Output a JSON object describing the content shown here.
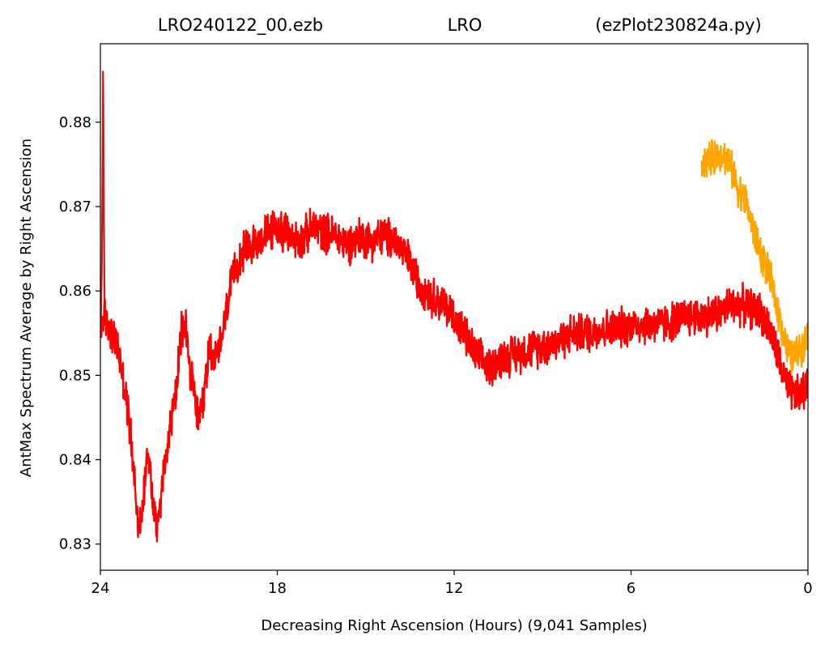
{
  "chart_data": {
    "type": "line",
    "title_parts": [
      "LRO240122_00.ezb",
      "LRO",
      "(ezPlot230824a.py)"
    ],
    "xlabel": "Decreasing Right Ascension (Hours) (9,041 Samples)",
    "ylabel": "AntMax Spectrum Average by Right Ascension",
    "xlim": [
      24,
      0
    ],
    "ylim": [
      0.8269,
      0.8893
    ],
    "x_ticks": [
      24,
      18,
      12,
      6,
      0
    ],
    "x_tick_labels": [
      "24",
      "18",
      "12",
      "6",
      "0"
    ],
    "y_ticks": [
      0.83,
      0.84,
      0.85,
      0.86,
      0.87,
      0.88
    ],
    "y_tick_labels": [
      "0.83",
      "0.84",
      "0.85",
      "0.86",
      "0.87",
      "0.88"
    ],
    "grid": false,
    "series": [
      {
        "color": "#ff0000",
        "noise": 0.0028,
        "points": [
          [
            24.0,
            0.8555
          ],
          [
            23.85,
            0.857
          ],
          [
            23.6,
            0.855
          ],
          [
            23.4,
            0.853
          ],
          [
            23.2,
            0.849
          ],
          [
            23.0,
            0.844
          ],
          [
            22.85,
            0.838
          ],
          [
            22.7,
            0.832
          ],
          [
            22.6,
            0.833
          ],
          [
            22.5,
            0.8375
          ],
          [
            22.4,
            0.842
          ],
          [
            22.25,
            0.836
          ],
          [
            22.1,
            0.832
          ],
          [
            21.95,
            0.8355
          ],
          [
            21.8,
            0.84
          ],
          [
            21.6,
            0.8445
          ],
          [
            21.4,
            0.849
          ],
          [
            21.25,
            0.855
          ],
          [
            21.1,
            0.856
          ],
          [
            20.95,
            0.85
          ],
          [
            20.8,
            0.8475
          ],
          [
            20.65,
            0.844
          ],
          [
            20.5,
            0.847
          ],
          [
            20.3,
            0.8535
          ],
          [
            20.1,
            0.852
          ],
          [
            19.9,
            0.854
          ],
          [
            19.6,
            0.86
          ],
          [
            19.3,
            0.864
          ],
          [
            19.0,
            0.865
          ],
          [
            18.6,
            0.866
          ],
          [
            18.3,
            0.867
          ],
          [
            18.0,
            0.8675
          ],
          [
            17.6,
            0.8665
          ],
          [
            17.2,
            0.866
          ],
          [
            16.8,
            0.8675
          ],
          [
            16.4,
            0.867
          ],
          [
            16.0,
            0.8665
          ],
          [
            15.6,
            0.8655
          ],
          [
            15.2,
            0.8665
          ],
          [
            14.8,
            0.866
          ],
          [
            14.4,
            0.8665
          ],
          [
            14.0,
            0.866
          ],
          [
            13.6,
            0.864
          ],
          [
            13.2,
            0.861
          ],
          [
            12.8,
            0.8595
          ],
          [
            12.4,
            0.8585
          ],
          [
            12.0,
            0.857
          ],
          [
            11.6,
            0.8545
          ],
          [
            11.2,
            0.852
          ],
          [
            10.8,
            0.851
          ],
          [
            10.4,
            0.852
          ],
          [
            10.0,
            0.8525
          ],
          [
            9.5,
            0.853
          ],
          [
            9.0,
            0.8535
          ],
          [
            8.5,
            0.854
          ],
          [
            8.0,
            0.855
          ],
          [
            7.5,
            0.855
          ],
          [
            7.0,
            0.8555
          ],
          [
            6.5,
            0.8555
          ],
          [
            6.0,
            0.856
          ],
          [
            5.5,
            0.856
          ],
          [
            5.0,
            0.856
          ],
          [
            4.5,
            0.8565
          ],
          [
            4.0,
            0.857
          ],
          [
            3.5,
            0.857
          ],
          [
            3.0,
            0.8575
          ],
          [
            2.5,
            0.8585
          ],
          [
            2.0,
            0.858
          ],
          [
            1.6,
            0.8575
          ],
          [
            1.3,
            0.8555
          ],
          [
            1.0,
            0.852
          ],
          [
            0.7,
            0.8485
          ],
          [
            0.4,
            0.8475
          ],
          [
            0.0,
            0.8485
          ]
        ]
      },
      {
        "color": "#ffa500",
        "noise": 0.0025,
        "points": [
          [
            3.6,
            0.8755
          ],
          [
            3.3,
            0.8755
          ],
          [
            3.0,
            0.8765
          ],
          [
            2.7,
            0.8755
          ],
          [
            2.4,
            0.8725
          ],
          [
            2.1,
            0.8705
          ],
          [
            1.8,
            0.8665
          ],
          [
            1.5,
            0.8635
          ],
          [
            1.2,
            0.8605
          ],
          [
            1.0,
            0.8575
          ],
          [
            0.8,
            0.8545
          ],
          [
            0.6,
            0.852
          ],
          [
            0.4,
            0.8525
          ],
          [
            0.2,
            0.8535
          ],
          [
            0.0,
            0.8545
          ]
        ]
      },
      {
        "color": "#cc1a1a",
        "noise": 0.0,
        "points": [
          [
            23.98,
            0.857
          ],
          [
            23.95,
            0.863
          ],
          [
            23.93,
            0.873
          ],
          [
            23.91,
            0.886
          ],
          [
            23.9,
            0.883
          ],
          [
            23.88,
            0.868
          ],
          [
            23.86,
            0.859
          ]
        ]
      }
    ]
  }
}
